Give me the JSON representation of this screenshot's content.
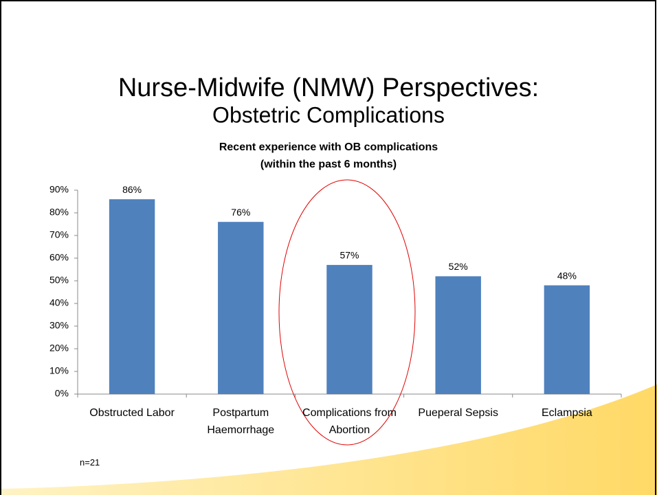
{
  "slide_title": "Nurse-Midwife (NMW) Perspectives:",
  "slide_subtitle": "Obstetric Complications",
  "note": "n=21",
  "chart_data": {
    "type": "bar",
    "title": [
      "Recent experience with OB complications",
      "(within the past 6 months)"
    ],
    "categories": [
      "Obstructed Labor",
      "Postpartum Haemorrhage",
      "Complications from Abortion",
      "Pueperal Sepsis",
      "Eclampsia"
    ],
    "values": [
      86,
      76,
      57,
      52,
      48
    ],
    "value_labels": [
      "86%",
      "76%",
      "57%",
      "52%",
      "48%"
    ],
    "color": "#4f81bd",
    "ylim": [
      0,
      90
    ],
    "yticks": [
      {
        "value": 0,
        "label": "0%"
      },
      {
        "value": 10,
        "label": "10%"
      },
      {
        "value": 20,
        "label": "20%"
      },
      {
        "value": 30,
        "label": "30%"
      },
      {
        "value": 40,
        "label": "40%"
      },
      {
        "value": 50,
        "label": "50%"
      },
      {
        "value": 60,
        "label": "60%"
      },
      {
        "value": 70,
        "label": "70%"
      },
      {
        "value": 80,
        "label": "80%"
      },
      {
        "value": 90,
        "label": "90%"
      }
    ]
  }
}
